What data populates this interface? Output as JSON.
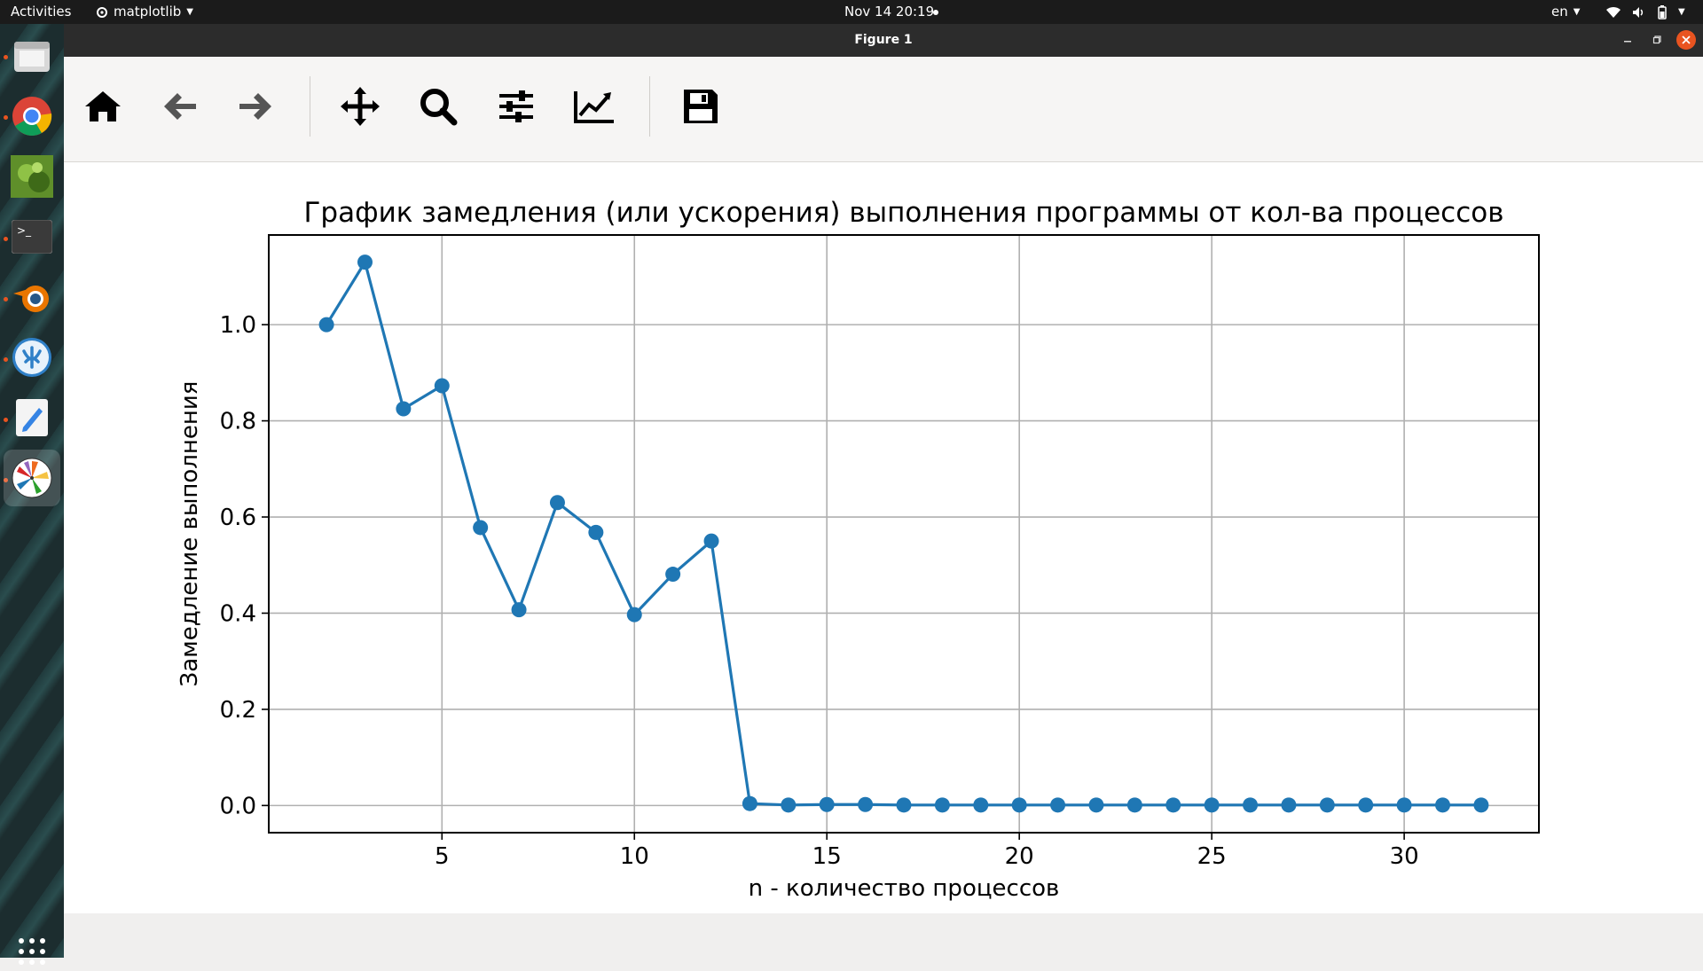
{
  "topbar": {
    "activities": "Activities",
    "app_name": "matplotlib",
    "clock": "Nov 14  20:19",
    "language": "en"
  },
  "dock": {
    "items": [
      {
        "icon": "files-icon",
        "running": true
      },
      {
        "icon": "chrome-icon",
        "running": true
      },
      {
        "icon": "image-viewer-icon",
        "running": false
      },
      {
        "icon": "terminal-icon",
        "running": true
      },
      {
        "icon": "blender-icon",
        "running": true
      },
      {
        "icon": "vscodium-icon",
        "running": true
      },
      {
        "icon": "text-editor-icon",
        "running": true
      },
      {
        "icon": "matplotlib-icon",
        "running": true,
        "active": true
      }
    ],
    "show_apps_icon": "grid-icon"
  },
  "window": {
    "title": "Figure 1",
    "buttons": [
      "minimize",
      "maximize",
      "close"
    ]
  },
  "toolbar": {
    "tools": [
      "home-icon",
      "back-icon",
      "forward-icon",
      "pan-icon",
      "zoom-icon",
      "configure-subplots-icon",
      "edit-axis-icon",
      "save-icon"
    ]
  },
  "chart_data": {
    "type": "line",
    "title": "График замедления (или ускорения) выполнения программы от кол-ва процессов",
    "xlabel": "n - количество процессов",
    "ylabel": "Замедление выполнения",
    "x": [
      2,
      3,
      4,
      5,
      6,
      7,
      8,
      9,
      10,
      11,
      12,
      13,
      14,
      15,
      16,
      17,
      18,
      19,
      20,
      21,
      22,
      23,
      24,
      25,
      26,
      27,
      28,
      29,
      30,
      31,
      32
    ],
    "series": [
      {
        "values": [
          1.0,
          1.13,
          0.825,
          0.873,
          0.578,
          0.407,
          0.63,
          0.568,
          0.397,
          0.481,
          0.55,
          0.004,
          0.001,
          0.002,
          0.002,
          0.001,
          0.001,
          0.001,
          0.001,
          0.001,
          0.001,
          0.001,
          0.001,
          0.001,
          0.001,
          0.001,
          0.001,
          0.001,
          0.001,
          0.001,
          0.001
        ],
        "color": "#1f77b4",
        "marker": "o"
      }
    ],
    "xlim": [
      0.5,
      33.5
    ],
    "ylim": [
      -0.0565,
      1.1865
    ],
    "xticks": [
      5,
      10,
      15,
      20,
      25,
      30
    ],
    "xtick_labels": [
      "5",
      "10",
      "15",
      "20",
      "25",
      "30"
    ],
    "yticks": [
      0.0,
      0.2,
      0.4,
      0.6,
      0.8,
      1.0
    ],
    "ytick_labels": [
      "0.0",
      "0.2",
      "0.4",
      "0.6",
      "0.8",
      "1.0"
    ],
    "grid": true,
    "legend": false
  }
}
